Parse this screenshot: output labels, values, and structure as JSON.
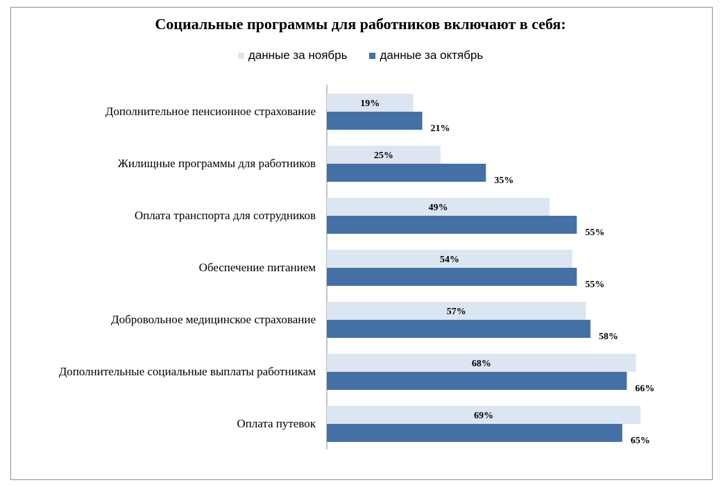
{
  "chart_data": {
    "type": "bar",
    "orientation": "horizontal",
    "title": "Социальные программы для работников включают в себя:",
    "categories": [
      "Дополнительное пенсионное страхование",
      "Жилищные программы для работников",
      "Оплата транспорта для сотрудников",
      "Обеспечение питанием",
      "Добровольное медицинское страхование",
      "Дополнительные социальные выплаты работникам",
      "Оплата путевок"
    ],
    "series": [
      {
        "name": "данные за ноябрь",
        "values": [
          19,
          25,
          49,
          54,
          57,
          68,
          69
        ],
        "color": "#dce6f2"
      },
      {
        "name": "данные за октябрь",
        "values": [
          21,
          35,
          55,
          55,
          58,
          66,
          65
        ],
        "color": "#4570a5"
      }
    ],
    "value_suffix": "%",
    "xlim": [
      0,
      100
    ],
    "grid": false,
    "legend_position": "top"
  }
}
